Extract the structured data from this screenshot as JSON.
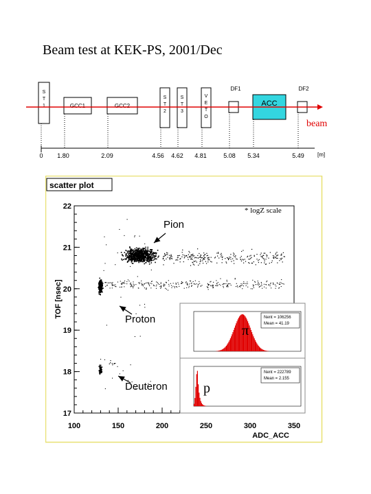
{
  "title": "Beam test at KEK-PS, 2001/Dec",
  "beamline": {
    "beam_label": "beam",
    "unit_label": "[m]",
    "detectors": [
      {
        "label": "S\nT\n1"
      },
      {
        "label": "GCC1"
      },
      {
        "label": "GCC2"
      },
      {
        "label": "S\nT\n2"
      },
      {
        "label": "S\nT\n3"
      },
      {
        "label": "V\nE\nT\nO"
      },
      {
        "label": "DF1"
      },
      {
        "label": "ACC"
      },
      {
        "label": "DF2"
      }
    ],
    "positions": [
      "0",
      "1.80",
      "2.09",
      "4.56",
      "4.62",
      "4.81",
      "5.08",
      "5.34",
      "5.49"
    ],
    "colors": {
      "beam": "#e00000",
      "acc_fill": "#33d6e0"
    }
  },
  "scatter_panel": {
    "label": "scatter plot",
    "note": "* logZ scale",
    "annotations": [
      "Pion",
      "Proton",
      "Deuteron"
    ],
    "border_color": "#e8e070"
  },
  "chart_data": {
    "type": "scatter",
    "xlabel": "ADC_ACC",
    "ylabel": "TOF [nsec]",
    "xlim": [
      100,
      350
    ],
    "ylim": [
      17,
      22
    ],
    "x_ticks": [
      "100",
      "150",
      "200",
      "250",
      "300",
      "350"
    ],
    "y_ticks": [
      "17",
      "18",
      "19",
      "20",
      "21",
      "22"
    ],
    "z_scale": "log",
    "clusters": [
      {
        "name": "Pion",
        "x_center": 175,
        "y_center": 20.8,
        "x_spread": [
          140,
          340
        ],
        "y_spread": [
          20.5,
          21.2
        ]
      },
      {
        "name": "Proton",
        "x_center": 130,
        "y_center": 20.05,
        "x_spread": [
          125,
          340
        ],
        "y_spread": [
          19.7,
          20.4
        ]
      },
      {
        "name": "Deuteron",
        "x_center": 130,
        "y_center": 18.05,
        "x_spread": [
          128,
          145
        ],
        "y_spread": [
          17.8,
          18.4
        ]
      }
    ],
    "insets": [
      {
        "symbol": "π",
        "stats": [
          "Nent = 106256",
          "Mean = 41.19"
        ],
        "peak_fraction": 0.45
      },
      {
        "symbol": "p",
        "stats": [
          "Nent = 222789",
          "Mean = 2.155"
        ],
        "peak_fraction": 0.03
      }
    ],
    "colors": {
      "points": "#000000",
      "histogram": "#e00000"
    }
  }
}
